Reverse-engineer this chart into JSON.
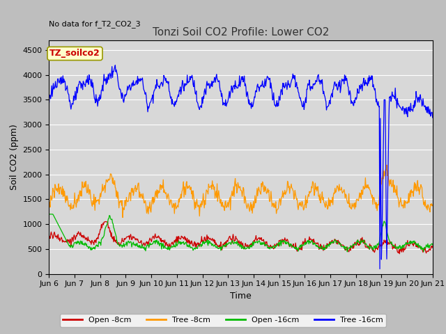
{
  "title": "Tonzi Soil CO2 Profile: Lower CO2",
  "no_data_text": "No data for f_T2_CO2_3",
  "ylabel": "Soil CO2 (ppm)",
  "xlabel": "Time",
  "legend_label": "TZ_soilco2",
  "ylim": [
    0,
    4700
  ],
  "yticks": [
    0,
    500,
    1000,
    1500,
    2000,
    2500,
    3000,
    3500,
    4000,
    4500
  ],
  "x_tick_labels": [
    "Jun 6",
    "Jun 7",
    "Jun 8",
    "Jun 9",
    "Jun 10",
    "Jun 11",
    "Jun 12",
    "Jun 13",
    "Jun 14",
    "Jun 15",
    "Jun 16",
    "Jun 17",
    "Jun 18",
    "Jun 19",
    "Jun 20",
    "Jun 21"
  ],
  "line_colors": {
    "open_8cm": "#cc0000",
    "tree_8cm": "#ff9900",
    "open_16cm": "#00bb00",
    "tree_16cm": "#0000ff"
  },
  "legend_labels": [
    "Open -8cm",
    "Tree -8cm",
    "Open -16cm",
    "Tree -16cm"
  ],
  "fig_bg": "#bebebe",
  "plot_bg": "#d8d8d8",
  "title_fontsize": 11,
  "axis_fontsize": 9,
  "tick_fontsize": 8,
  "legend_fontsize": 8
}
